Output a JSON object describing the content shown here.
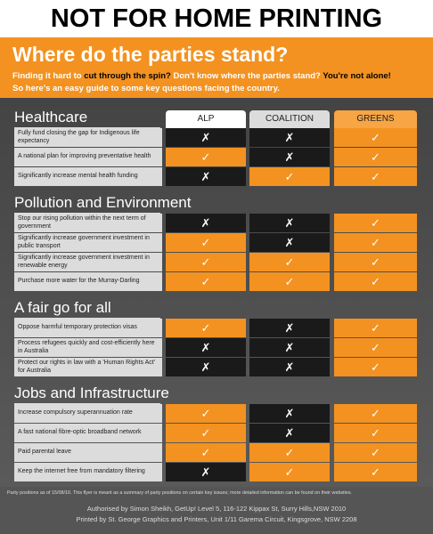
{
  "banner": "NOT FOR HOME PRINTING",
  "header": {
    "title": "Where do the parties stand?",
    "intro": [
      "Finding it hard to ",
      "cut through the spin?",
      " Don't know where the parties stand? ",
      "You're not alone!"
    ],
    "intro_line2": "So here's an easy guide to some key questions facing the country."
  },
  "table": {
    "columns": [
      "ALP",
      "COALITION",
      "GREENS"
    ],
    "sections": [
      {
        "title": "Healthcare",
        "rows": [
          {
            "question": "Fully fund closing the gap for Indigenous life expectancy",
            "positions": [
              "✗",
              "✗",
              "✓"
            ]
          },
          {
            "question": "A national plan for improving preventative health",
            "positions": [
              "✓",
              "✗",
              "✓"
            ]
          },
          {
            "question": "Significantly increase mental health funding",
            "positions": [
              "✗",
              "✓",
              "✓"
            ]
          }
        ]
      },
      {
        "title": "Pollution and Environment",
        "rows": [
          {
            "question": "Stop our rising pollution within the next term of government",
            "positions": [
              "✗",
              "✗",
              "✓"
            ]
          },
          {
            "question": "Significantly increase government investment in public transport",
            "positions": [
              "✓",
              "✗",
              "✓"
            ]
          },
          {
            "question": "Significantly increase government investment in renewable energy",
            "positions": [
              "✓",
              "✓",
              "✓"
            ]
          },
          {
            "question": "Purchase more water for the Murray-Darling",
            "positions": [
              "✓",
              "✓",
              "✓"
            ]
          }
        ]
      },
      {
        "title": "A fair go for all",
        "rows": [
          {
            "question": "Oppose harmful temporary protection visas",
            "positions": [
              "✓",
              "✗",
              "✓"
            ]
          },
          {
            "question": "Process refugees quickly and cost-efficiently here in Australia",
            "positions": [
              "✗",
              "✗",
              "✓"
            ]
          },
          {
            "question": "Protect our rights in law with a 'Human Rights Act' for Australia",
            "positions": [
              "✗",
              "✗",
              "✓"
            ]
          }
        ]
      },
      {
        "title": "Jobs and Infrastructure",
        "rows": [
          {
            "question": "Increase compulsory superannuation rate",
            "positions": [
              "✓",
              "✗",
              "✓"
            ]
          },
          {
            "question": "A fast national fibre-optic broadband network",
            "positions": [
              "✓",
              "✗",
              "✓"
            ]
          },
          {
            "question": "Paid parental leave",
            "positions": [
              "✓",
              "✓",
              "✓"
            ]
          },
          {
            "question": "Keep the internet free from mandatory filtering",
            "positions": [
              "✗",
              "✓",
              "✓"
            ]
          }
        ]
      }
    ]
  },
  "footer": {
    "note": "Party positions as of 15/08/10. This flyer is meant as a summary of party positions on certain key issues; more detailed information can be found on their websites.",
    "lines": [
      "Authorised by Simon Sheikh, GetUp! Level 5, 116-122 Kippax St, Surry Hills,NSW 2010",
      "Printed by St. George Graphics and Printers, Unit 1/11 Garema Circuit, Kingsgrove, NSW 2208"
    ]
  }
}
